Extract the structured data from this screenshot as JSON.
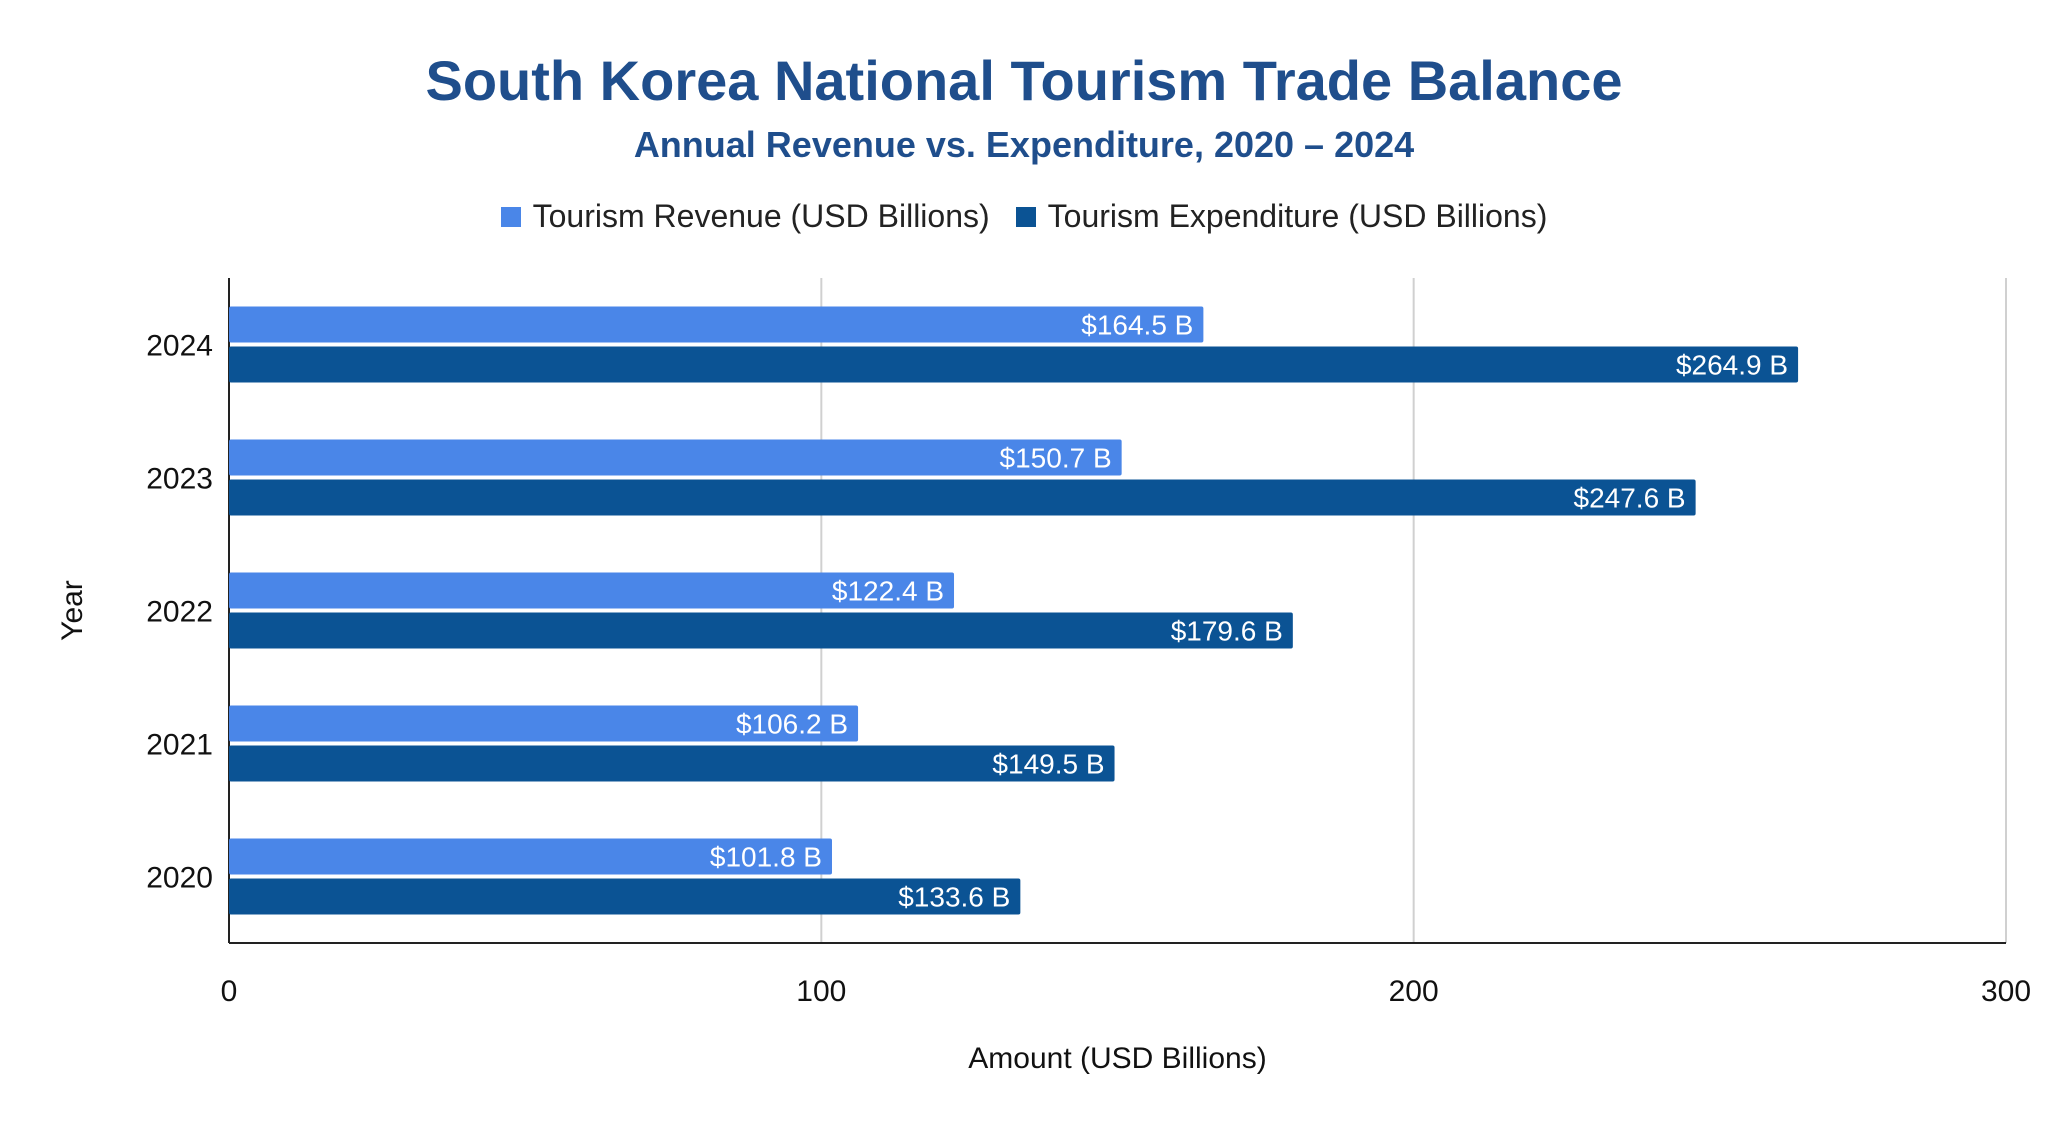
{
  "chart_data": {
    "type": "bar",
    "orientation": "horizontal",
    "title": "South Korea National Tourism Trade Balance",
    "subtitle": "Annual Revenue vs. Expenditure, 2020 – 2024",
    "xlabel": "Amount (USD Billions)",
    "ylabel": "Year",
    "categories": [
      "2024",
      "2023",
      "2022",
      "2021",
      "2020"
    ],
    "series": [
      {
        "name": "Tourism Revenue (USD Billions)",
        "color": "#4a86e8",
        "values": [
          164.5,
          150.7,
          122.4,
          106.2,
          101.8
        ],
        "data_labels": [
          "$164.5 B",
          "$150.7 B",
          "$122.4 B",
          "$106.2 B",
          "$101.8 B"
        ]
      },
      {
        "name": "Tourism Expenditure (USD Billions)",
        "color": "#0b5394",
        "values": [
          264.9,
          247.6,
          179.6,
          149.5,
          133.6
        ],
        "data_labels": [
          "$264.9 B",
          "$247.6 B",
          "$179.6 B",
          "$149.5 B",
          "$133.6 B"
        ]
      }
    ],
    "xlim": [
      0,
      300
    ],
    "xticks": [
      "0",
      "100",
      "200",
      "300"
    ],
    "grid": "vertical",
    "legend_position": "top"
  }
}
